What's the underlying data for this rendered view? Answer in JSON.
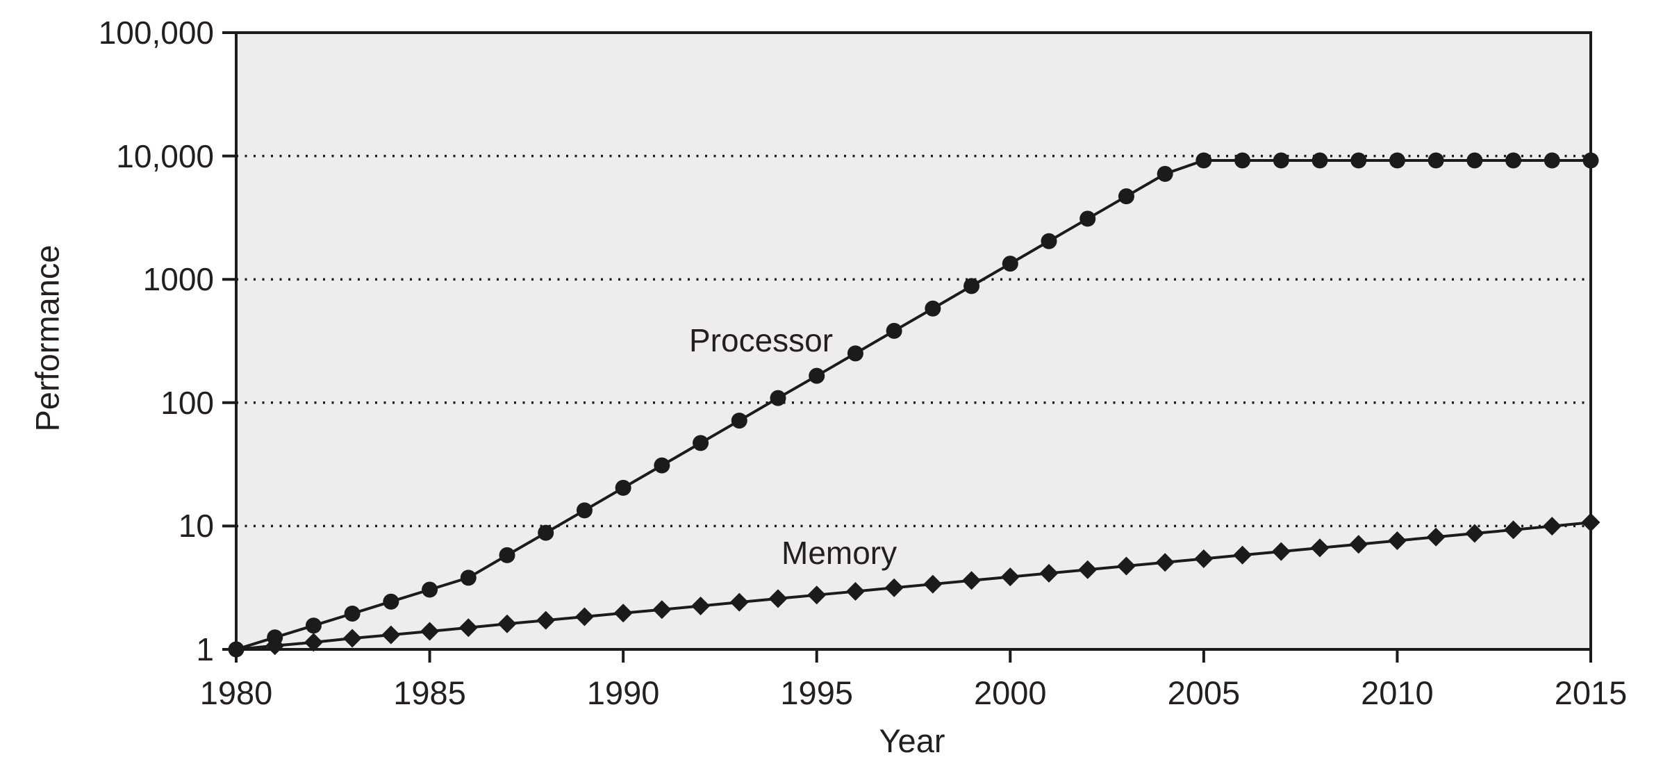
{
  "figure": {
    "y_axis": {
      "label": "Performance",
      "tick_labels": [
        "1",
        "10",
        "100",
        "1000",
        "10,000",
        "100,000"
      ],
      "tick_values": [
        1,
        10,
        100,
        1000,
        10000,
        100000
      ]
    },
    "x_axis": {
      "label": "Year",
      "tick_labels": [
        "1980",
        "1985",
        "1990",
        "1995",
        "2000",
        "2005",
        "2010",
        "2015"
      ],
      "tick_values": [
        1980,
        1985,
        1990,
        1995,
        2000,
        2005,
        2010,
        2015
      ]
    },
    "series_labels": {
      "processor": "Processor",
      "memory": "Memory"
    }
  },
  "chart_data": {
    "type": "line",
    "title": "",
    "xlabel": "Year",
    "ylabel": "Performance",
    "x_range": [
      1980,
      2015
    ],
    "y_range": [
      1,
      100000
    ],
    "y_scale": "log10",
    "grid": "horizontal dotted lines at each power of ten",
    "legend_position": "inline labels next to lines",
    "x": [
      1980,
      1981,
      1982,
      1983,
      1984,
      1985,
      1986,
      1987,
      1988,
      1989,
      1990,
      1991,
      1992,
      1993,
      1994,
      1995,
      1996,
      1997,
      1998,
      1999,
      2000,
      2001,
      2002,
      2003,
      2004,
      2005,
      2006,
      2007,
      2008,
      2009,
      2010,
      2011,
      2012,
      2013,
      2014,
      2015
    ],
    "series": [
      {
        "name": "Processor",
        "marker": "circle",
        "values": [
          1.0,
          1.25,
          1.56,
          1.95,
          2.44,
          3.05,
          3.81,
          5.8,
          8.81,
          13.4,
          20.4,
          31.0,
          47.1,
          71.6,
          109,
          165,
          251,
          382,
          580,
          882,
          1340,
          2040,
          3100,
          4710,
          7160,
          9200,
          9200,
          9200,
          9200,
          9200,
          9200,
          9200,
          9200,
          9200,
          9200,
          9200
        ]
      },
      {
        "name": "Memory",
        "marker": "diamond",
        "values": [
          1.0,
          1.07,
          1.14,
          1.23,
          1.31,
          1.4,
          1.5,
          1.61,
          1.72,
          1.84,
          1.97,
          2.1,
          2.25,
          2.41,
          2.58,
          2.76,
          2.95,
          3.16,
          3.38,
          3.62,
          3.87,
          4.14,
          4.43,
          4.74,
          5.07,
          5.43,
          5.81,
          6.21,
          6.65,
          7.11,
          7.61,
          8.14,
          8.71,
          9.32,
          9.97,
          10.7
        ]
      }
    ],
    "colors": {
      "line": "#1b1b1b",
      "marker_fill": "#1b1b1b",
      "plot_background": "#ededed",
      "page_background": "#ffffff",
      "text": "#231f20",
      "gridline": "#1b1b1b"
    }
  }
}
